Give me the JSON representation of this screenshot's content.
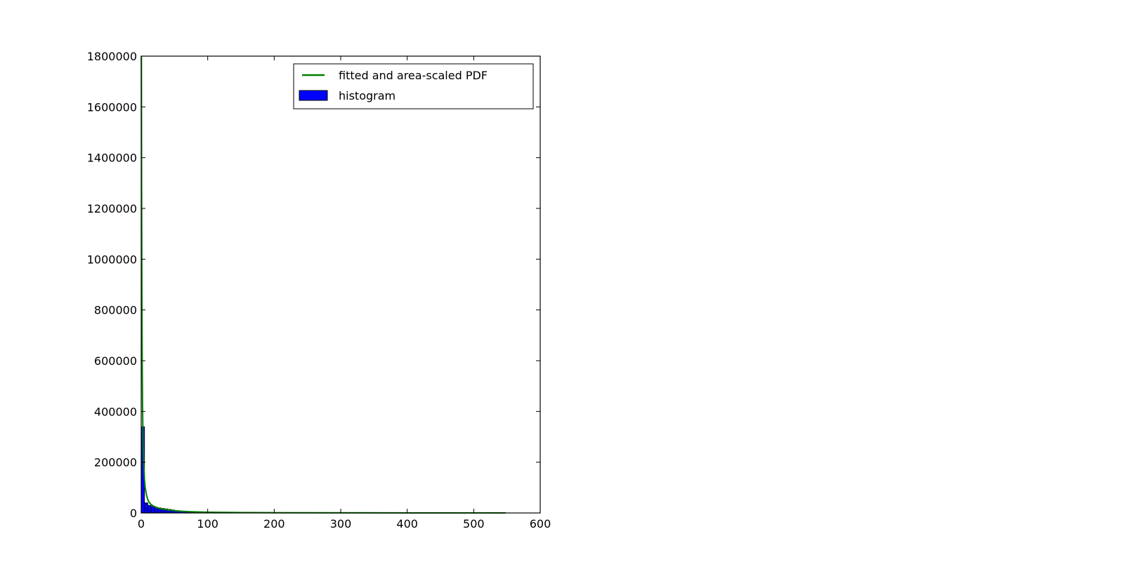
{
  "chart_data": {
    "type": "bar",
    "title": "",
    "xlabel": "",
    "ylabel": "",
    "xlim": [
      0,
      600
    ],
    "ylim": [
      0,
      1800000
    ],
    "grid": false,
    "legend_placement": "top-right",
    "x_ticks": [
      "0",
      "100",
      "200",
      "300",
      "400",
      "500",
      "600"
    ],
    "y_ticks": [
      "0",
      "200000",
      "400000",
      "600000",
      "800000",
      "1000000",
      "1200000",
      "1400000",
      "1600000",
      "1800000"
    ],
    "series": [
      {
        "name": "histogram",
        "kind": "bar",
        "color": "#0000ff",
        "edge_color": "#000000",
        "bins": [
          {
            "x0": 0,
            "x1": 5,
            "value": 340000
          },
          {
            "x0": 5,
            "x1": 10,
            "value": 40000
          },
          {
            "x0": 10,
            "x1": 15,
            "value": 30000
          },
          {
            "x0": 15,
            "x1": 20,
            "value": 25000
          },
          {
            "x0": 20,
            "x1": 25,
            "value": 22000
          },
          {
            "x0": 25,
            "x1": 30,
            "value": 20000
          },
          {
            "x0": 30,
            "x1": 35,
            "value": 18000
          },
          {
            "x0": 35,
            "x1": 40,
            "value": 16000
          },
          {
            "x0": 40,
            "x1": 45,
            "value": 14000
          },
          {
            "x0": 45,
            "x1": 50,
            "value": 12000
          },
          {
            "x0": 50,
            "x1": 55,
            "value": 10000
          },
          {
            "x0": 55,
            "x1": 60,
            "value": 8000
          },
          {
            "x0": 60,
            "x1": 65,
            "value": 6500
          },
          {
            "x0": 65,
            "x1": 70,
            "value": 5000
          },
          {
            "x0": 70,
            "x1": 75,
            "value": 4000
          },
          {
            "x0": 75,
            "x1": 80,
            "value": 3000
          },
          {
            "x0": 80,
            "x1": 90,
            "value": 2500
          },
          {
            "x0": 90,
            "x1": 100,
            "value": 2000
          },
          {
            "x0": 100,
            "x1": 120,
            "value": 1500
          },
          {
            "x0": 120,
            "x1": 150,
            "value": 1000
          },
          {
            "x0": 150,
            "x1": 200,
            "value": 700
          },
          {
            "x0": 200,
            "x1": 300,
            "value": 400
          },
          {
            "x0": 300,
            "x1": 400,
            "value": 250
          },
          {
            "x0": 400,
            "x1": 500,
            "value": 150
          },
          {
            "x0": 500,
            "x1": 548,
            "value": 100
          }
        ]
      },
      {
        "name": "fitted and area-scaled PDF",
        "kind": "line",
        "color": "#008000",
        "x": [
          0.3,
          0.6,
          1,
          1.5,
          2,
          3,
          4,
          5,
          6,
          8,
          10,
          12,
          15,
          20,
          25,
          30,
          40,
          50,
          60,
          70,
          80,
          100,
          150,
          200,
          300,
          400,
          500,
          548
        ],
        "y": [
          1800000,
          1300000,
          900000,
          600000,
          420000,
          260000,
          180000,
          130000,
          100000,
          70000,
          52000,
          42000,
          33000,
          25000,
          20000,
          16500,
          12000,
          9000,
          7000,
          5500,
          4500,
          3200,
          1800,
          1200,
          700,
          450,
          300,
          250
        ]
      }
    ]
  }
}
